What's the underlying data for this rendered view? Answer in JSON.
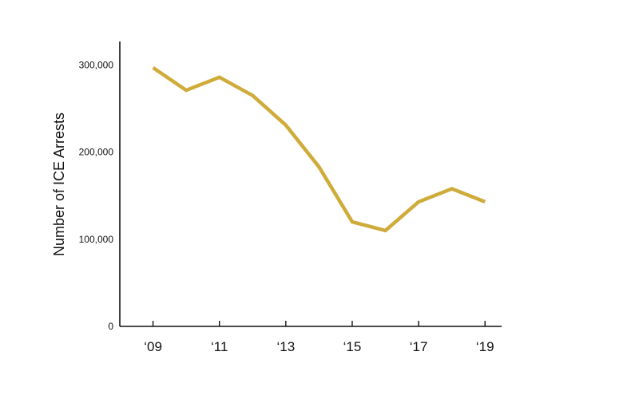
{
  "chart_data": {
    "type": "line",
    "title": "",
    "xlabel": "",
    "ylabel": "Number of ICE Arrests",
    "x": [
      2009,
      2010,
      2011,
      2012,
      2013,
      2014,
      2015,
      2016,
      2017,
      2018,
      2019
    ],
    "series": [
      {
        "values": [
          297000,
          271000,
          286000,
          265000,
          231000,
          183000,
          120000,
          110000,
          143000,
          158000,
          143000
        ],
        "color": "#CFAB3A"
      }
    ],
    "xticks": [
      2009,
      2011,
      2013,
      2015,
      2017,
      2019
    ],
    "xtick_labels": [
      "‘09",
      "‘11",
      "‘13",
      "‘15",
      "‘17",
      "‘19"
    ],
    "yticks": [
      0,
      100000,
      200000,
      300000
    ],
    "ytick_labels": [
      "0",
      "100,000",
      "200,000",
      "300,000"
    ],
    "xlim": [
      2008.0,
      2019.5
    ],
    "ylim": [
      0,
      327000
    ],
    "grid": false,
    "legend": "none"
  }
}
